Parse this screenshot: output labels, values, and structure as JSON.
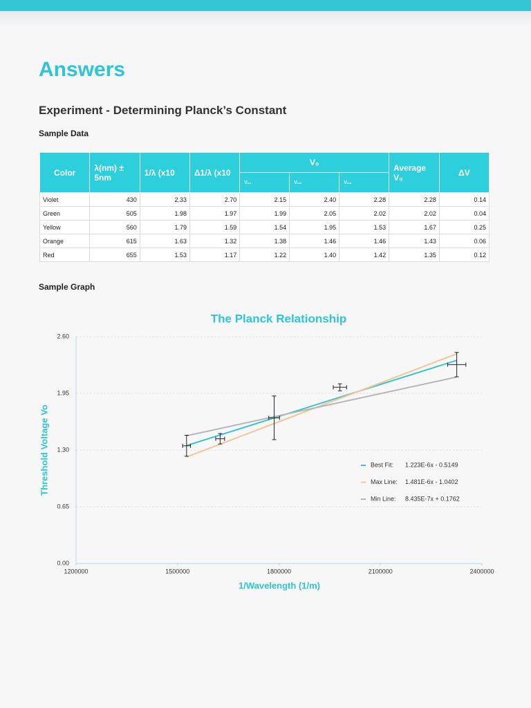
{
  "header": {
    "title": "Answers",
    "subtitle": "Experiment - Determining Planck’s Constant"
  },
  "table_heading": "Sample Data",
  "table": {
    "columns": [
      "Color",
      "λ(nm) ± 5nm",
      "1/λ (x10",
      "Δ1/λ (x10",
      "V₀",
      "Average V₀",
      "ΔV"
    ],
    "subcolumns": [
      "V₀₁",
      "V₀₂",
      "V₀₃"
    ],
    "rows": [
      [
        "Violet",
        "430",
        "2.33",
        "2.70",
        "2.15",
        "2.40",
        "2.28",
        "2.28",
        "0.14"
      ],
      [
        "Green",
        "505",
        "1.98",
        "1.97",
        "1.99",
        "2.05",
        "2.02",
        "2.02",
        "0.04"
      ],
      [
        "Yellow",
        "560",
        "1.79",
        "1.59",
        "1.54",
        "1.95",
        "1.53",
        "1.67",
        "0.25"
      ],
      [
        "Orange",
        "615",
        "1.63",
        "1.32",
        "1.38",
        "1.46",
        "1.46",
        "1.43",
        "0.06"
      ],
      [
        "Red",
        "655",
        "1.53",
        "1.17",
        "1.22",
        "1.40",
        "1.42",
        "1.35",
        "0.12"
      ]
    ]
  },
  "graph_heading": "Sample Graph",
  "chart_data": {
    "type": "scatter",
    "title": "The Planck Relationship",
    "x_label": "1/Wavelength (1/m)",
    "y_label": "Threshold Voltage Vo",
    "xlim": [
      1200000,
      2400000
    ],
    "xticks": [
      1200000,
      1500000,
      1800000,
      2100000,
      2400000
    ],
    "ylim": [
      0,
      2.6
    ],
    "yticks": [
      {
        "value": 0,
        "label": "0.00"
      },
      {
        "value": 0.65,
        "label": "0.65"
      },
      {
        "value": 1.3,
        "label": "1.30"
      },
      {
        "value": 1.95,
        "label": "1.95"
      },
      {
        "value": 2.6,
        "label": "2.60"
      }
    ],
    "grid": true,
    "points": {
      "color": "#222222",
      "x": [
        2325581,
        1980198,
        1785714,
        1626016,
        1526718
      ],
      "values": [
        2.28,
        2.02,
        1.67,
        1.43,
        1.35
      ],
      "xerr": [
        27000,
        19700,
        15900,
        13200,
        11700
      ],
      "yerr": [
        0.14,
        0.04,
        0.25,
        0.06,
        0.12
      ]
    },
    "series": [
      {
        "name": "Best Fit:",
        "equation": "1.223E-6x - 0.5149",
        "color": "#3bc1cf",
        "x": [
          1526718,
          2325581
        ],
        "values": [
          1.352,
          2.329
        ]
      },
      {
        "name": "Max Line:",
        "equation": "1.481E-6x - 1.0402",
        "color": "#f4c59a",
        "x": [
          1526718,
          2325581
        ],
        "values": [
          1.221,
          2.404
        ]
      },
      {
        "name": "Min Line:",
        "equation": "8.435E-7x + 0.1762",
        "color": "#b5b5b5",
        "x": [
          1526718,
          2325581
        ],
        "values": [
          1.464,
          2.138
        ]
      }
    ]
  }
}
